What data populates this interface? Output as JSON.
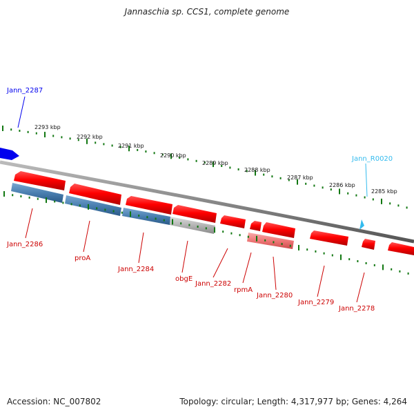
{
  "title": "Jannaschia sp. CCS1, complete genome",
  "footer": {
    "accession": "Accession: NC_007802",
    "stats": "Topology: circular; Length: 4,317,977 bp; Genes: 4,264"
  },
  "colors": {
    "cds": "#ff0000",
    "cds_light": "#ee7777",
    "blue_gene": "#0000ee",
    "rna_gene": "#33bbee",
    "blue_shade": "#4a7fb0",
    "grey_shade": "#aaaaaa",
    "ticks": "#117711",
    "backbone": "#888888"
  },
  "scale_labels": [
    "2293 kbp",
    "2292 kbp",
    "2291 kbp",
    "2290 kbp",
    "2289 kbp",
    "2288 kbp",
    "2287 kbp",
    "2286 kbp",
    "2285 kbp"
  ],
  "gene_labels": [
    {
      "text": "Jann_2287",
      "color": "#0000ee"
    },
    {
      "text": "Jann_R0020",
      "color": "#33bbee"
    },
    {
      "text": "Jann_2286",
      "color": "#cc0000"
    },
    {
      "text": "proA",
      "color": "#cc0000"
    },
    {
      "text": "Jann_2284",
      "color": "#cc0000"
    },
    {
      "text": "obgE",
      "color": "#cc0000"
    },
    {
      "text": "Jann_2282",
      "color": "#cc0000"
    },
    {
      "text": "rpmA",
      "color": "#cc0000"
    },
    {
      "text": "Jann_2280",
      "color": "#cc0000"
    },
    {
      "text": "Jann_2279",
      "color": "#cc0000"
    },
    {
      "text": "Jann_2278",
      "color": "#cc0000"
    }
  ]
}
